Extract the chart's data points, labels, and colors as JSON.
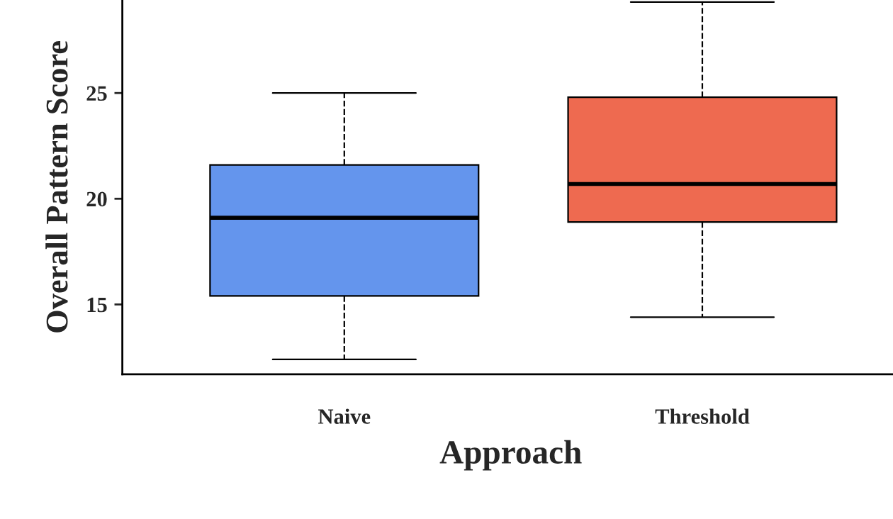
{
  "chart_data": {
    "type": "box",
    "xlabel": "Approach",
    "ylabel": "Overall Pattern Score",
    "categories": [
      "Naive",
      "Threshold"
    ],
    "boxes": [
      {
        "low": 12.4,
        "q1": 15.4,
        "median": 19.1,
        "q3": 21.6,
        "high": 25.0
      },
      {
        "low": 14.4,
        "q1": 18.9,
        "median": 20.7,
        "q3": 24.8,
        "high": 29.3
      }
    ],
    "colors": [
      "#6495ed",
      "#ee6a50"
    ],
    "ylim": [
      11.7,
      29.4
    ],
    "yticks": [
      15,
      20,
      25
    ],
    "grid": false
  }
}
